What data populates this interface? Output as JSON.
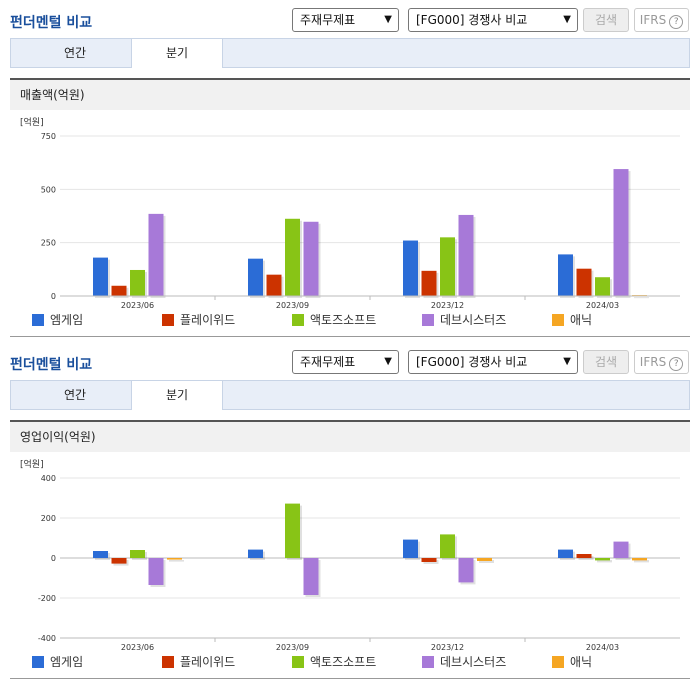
{
  "header": {
    "title": "펀더멘털 비교",
    "select1": "주재무제표",
    "select2": "[FG000] 경쟁사 비교",
    "search_label": "검색",
    "ifrs_label": "IFRS",
    "help_glyph": "?"
  },
  "tabs": [
    "연간",
    "분기"
  ],
  "legend": [
    {
      "name": "엠게임",
      "color": "#2b6cd6"
    },
    {
      "name": "플레이위드",
      "color": "#cc3300"
    },
    {
      "name": "액토즈소프트",
      "color": "#88c416"
    },
    {
      "name": "데브시스터즈",
      "color": "#a779d8"
    },
    {
      "name": "애닉",
      "color": "#f5a623"
    }
  ],
  "chart_data": [
    {
      "type": "bar",
      "title": "매출액(억원)",
      "unit": "[억원]",
      "categories": [
        "2023/06",
        "2023/09",
        "2023/12",
        "2024/03"
      ],
      "yticks": [
        "750",
        "500",
        "250",
        "0"
      ],
      "ylim": [
        0,
        750
      ],
      "series": [
        {
          "name": "엠게임",
          "values": [
            180,
            175,
            260,
            195
          ]
        },
        {
          "name": "플레이위드",
          "values": [
            48,
            100,
            118,
            128
          ]
        },
        {
          "name": "액토즈소프트",
          "values": [
            122,
            362,
            275,
            88
          ]
        },
        {
          "name": "데브시스터즈",
          "values": [
            385,
            348,
            380,
            595
          ]
        },
        {
          "name": "애닉",
          "values": [
            0,
            0,
            0,
            4
          ]
        }
      ]
    },
    {
      "type": "bar",
      "title": "영업이익(억원)",
      "unit": "[억원]",
      "categories": [
        "2023/06",
        "2023/09",
        "2023/12",
        "2024/03"
      ],
      "yticks": [
        "400",
        "200",
        "0",
        "-200",
        "-400"
      ],
      "ylim": [
        -400,
        400
      ],
      "series": [
        {
          "name": "엠게임",
          "values": [
            35,
            42,
            92,
            42
          ]
        },
        {
          "name": "플레이위드",
          "values": [
            -28,
            0,
            -20,
            20
          ]
        },
        {
          "name": "액토즈소프트",
          "values": [
            40,
            272,
            118,
            -12
          ]
        },
        {
          "name": "데브시스터즈",
          "values": [
            -135,
            -185,
            -122,
            82
          ]
        },
        {
          "name": "애닉",
          "values": [
            -8,
            0,
            -15,
            -12
          ]
        }
      ]
    }
  ]
}
